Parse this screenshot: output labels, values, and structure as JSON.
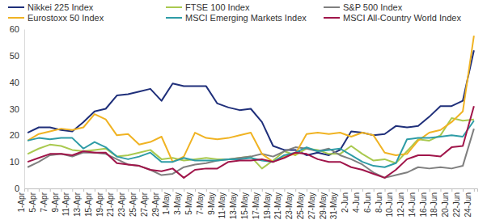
{
  "chart_data": {
    "type": "line",
    "categories": [
      "1-Apr",
      "5-Apr",
      "7-Apr",
      "9-Apr",
      "11-Apr",
      "13-Apr",
      "15-Apr",
      "19-Apr",
      "21-Apr",
      "23-Apr",
      "25-Apr",
      "27-Apr",
      "29-Apr",
      "1-May",
      "3-May",
      "5-May",
      "7-May",
      "9-May",
      "11-May",
      "13-May",
      "15-May",
      "17-May",
      "19-May",
      "21-May",
      "23-May",
      "25-May",
      "27-May",
      "29-May",
      "31-May",
      "2-Jun",
      "4-Jun",
      "6-Jun",
      "8-Jun",
      "10-Jun",
      "12-Jun",
      "14-Jun",
      "16-Jun",
      "18-Jun",
      "20-Jun",
      "22-Jun",
      "24-Jun"
    ],
    "series": [
      {
        "name": "Nikkei 225 Index",
        "color": "#1f2f7a",
        "values": [
          21,
          23,
          23,
          22,
          21.5,
          25,
          29,
          30,
          35,
          35.5,
          36.5,
          37.5,
          33,
          39.5,
          38.5,
          38.5,
          38.5,
          32,
          30.5,
          29.5,
          30,
          25,
          16,
          14.5,
          14.5,
          12.5,
          13.5,
          12.5,
          14.5,
          21.5,
          21,
          20,
          20.5,
          23.5,
          23,
          23.5,
          27,
          31,
          31,
          33,
          52
        ]
      },
      {
        "name": "FTSE 100 Index",
        "color": "#a9c94f",
        "values": [
          13,
          15,
          16.5,
          16,
          14.5,
          14,
          14.5,
          15,
          12,
          12.5,
          13.5,
          14.5,
          11,
          11.5,
          10.5,
          11,
          11.5,
          11,
          11,
          11.5,
          12,
          7.5,
          10.5,
          14,
          12.5,
          15,
          14.5,
          13,
          13,
          16,
          13,
          10.5,
          11,
          9.5,
          14,
          18.5,
          18,
          20,
          26.5,
          25.5,
          26
        ]
      },
      {
        "name": "S&P 500 Index",
        "color": "#7f7f7f",
        "values": [
          8,
          10,
          12.5,
          13,
          12,
          13.5,
          13.5,
          13,
          11,
          9,
          8.5,
          7,
          5,
          5.5,
          8,
          9,
          9.5,
          10.5,
          11,
          11.5,
          12,
          13,
          12,
          14,
          15.5,
          15,
          14,
          15,
          12.5,
          11,
          9,
          6,
          4,
          5,
          6,
          8,
          7.5,
          8,
          7.5,
          8.5,
          22.5
        ]
      },
      {
        "name": "Eurostoxx 50 Index",
        "color": "#f0b323",
        "values": [
          18,
          20.5,
          21.5,
          22.5,
          22,
          23,
          28,
          26,
          20,
          20.5,
          16.5,
          17.5,
          19.5,
          10,
          12,
          21,
          19,
          18.5,
          19,
          20,
          21,
          13,
          10,
          12,
          13,
          20.5,
          21,
          20.5,
          21,
          19.5,
          21,
          20,
          13.5,
          12.5,
          13,
          18,
          21,
          22,
          25,
          29,
          57.5
        ]
      },
      {
        "name": "MSCI Emerging Markets Index",
        "color": "#2e9ca6",
        "values": [
          18,
          19,
          18.5,
          19,
          19,
          15,
          17.5,
          15.5,
          12,
          11,
          12,
          13.5,
          10,
          10,
          11.5,
          10.5,
          10.5,
          10.5,
          11,
          11,
          11.5,
          10.5,
          10,
          12.5,
          13.5,
          15.5,
          14,
          14.5,
          15,
          12.5,
          10,
          8.5,
          8,
          9.5,
          18.5,
          19,
          19,
          19.5,
          20,
          19.5,
          25.5
        ]
      },
      {
        "name": "MSCI All-Country World Index",
        "color": "#a0154a",
        "values": [
          10,
          11.5,
          13,
          13,
          12.5,
          14,
          13.5,
          13.5,
          9.5,
          9,
          8.5,
          7,
          6.5,
          7.5,
          4,
          7,
          7.5,
          7.5,
          10,
          10.5,
          10.5,
          11,
          10,
          11.5,
          13.5,
          13,
          11,
          10,
          10,
          8,
          7,
          5.5,
          4,
          7,
          11,
          12.5,
          12.5,
          12,
          15.5,
          16,
          31
        ]
      }
    ],
    "ylim": [
      0,
      60
    ],
    "yticks": [
      0,
      10,
      20,
      30,
      40,
      50,
      60
    ],
    "grid": false,
    "legend": "top"
  }
}
